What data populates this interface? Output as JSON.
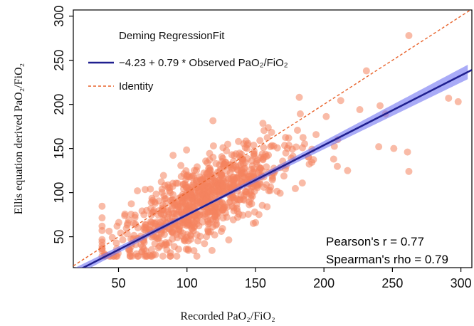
{
  "chart_data": {
    "type": "scatter",
    "title": "",
    "xlabel": "Recorded PaO₂/FiO₂",
    "ylabel": "Ellis equation derived PaO₂/FiO₂",
    "xlim": [
      17,
      308
    ],
    "ylim": [
      15,
      307
    ],
    "xticks": [
      50,
      100,
      150,
      200,
      250,
      300
    ],
    "yticks": [
      50,
      100,
      150,
      200,
      250,
      300
    ],
    "grid": false,
    "legend": {
      "placement": "top-left",
      "title": "Deming RegressionFit",
      "entries": [
        {
          "label": "−4.23 + 0.79 * Observed PaO₂/FiO₂",
          "style": "solid",
          "color": "#1f1f8f"
        },
        {
          "label": "Identity",
          "style": "dashed",
          "color": "#e8622a"
        }
      ]
    },
    "regression": {
      "intercept": -4.23,
      "slope": 0.79,
      "ci_half_width_at_300": 8
    },
    "identity": {
      "slope": 1,
      "intercept": 0
    },
    "annotations": {
      "pearson": "Pearson's r = 0.77",
      "spearman": "Spearman's rho = 0.79"
    },
    "series": [
      {
        "points_generated": true,
        "n": 900,
        "x_mean": 110,
        "x_sd": 35,
        "x_range": [
          38,
          300
        ],
        "residual_sd": 22,
        "outliers": [
          [
            262,
            278
          ],
          [
            291,
            207
          ],
          [
            298,
            203
          ],
          [
            261,
            146
          ],
          [
            262,
            124
          ],
          [
            251,
            150
          ],
          [
            231,
            238
          ],
          [
            182,
            208
          ],
          [
            210,
            160
          ],
          [
            240,
            152
          ]
        ]
      }
    ],
    "colors": {
      "points": "#f4845f",
      "regression_line": "#1f1f8f",
      "confidence_band": "#6f73f2",
      "identity_line": "#e8622a",
      "axis": "#000000"
    }
  }
}
